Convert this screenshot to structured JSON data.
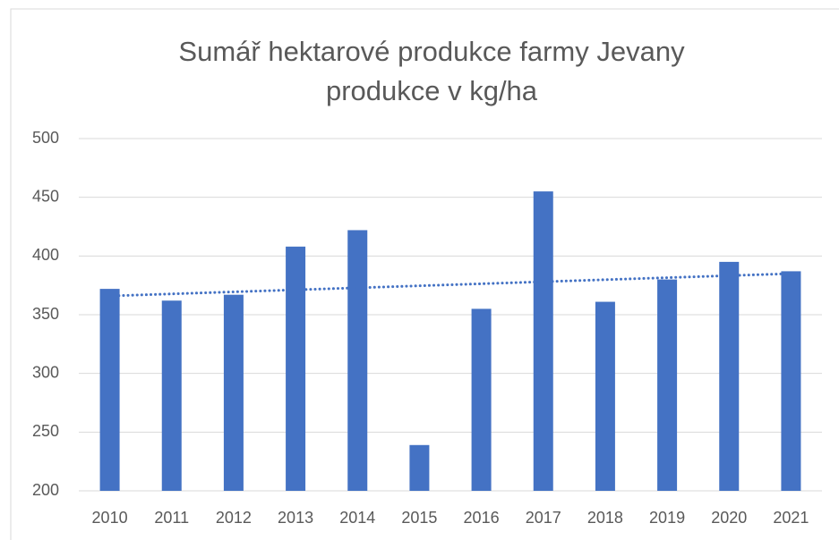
{
  "chart_data": {
    "type": "bar",
    "title": [
      "Sumář hektarové produkce farmy Jevany",
      "produkce v kg/ha"
    ],
    "categories": [
      "2010",
      "2011",
      "2012",
      "2013",
      "2014",
      "2015",
      "2016",
      "2017",
      "2018",
      "2019",
      "2020",
      "2021"
    ],
    "values": [
      372,
      362,
      367,
      408,
      422,
      239,
      355,
      455,
      361,
      380,
      395,
      387
    ],
    "color": "#4472c4",
    "ylim": [
      200,
      500
    ],
    "yticks": [
      200,
      250,
      300,
      350,
      400,
      450,
      500
    ],
    "grid": true,
    "trendline": {
      "type": "linear",
      "start": 366,
      "end": 385,
      "color": "#4472c4",
      "style": "dotted"
    }
  }
}
